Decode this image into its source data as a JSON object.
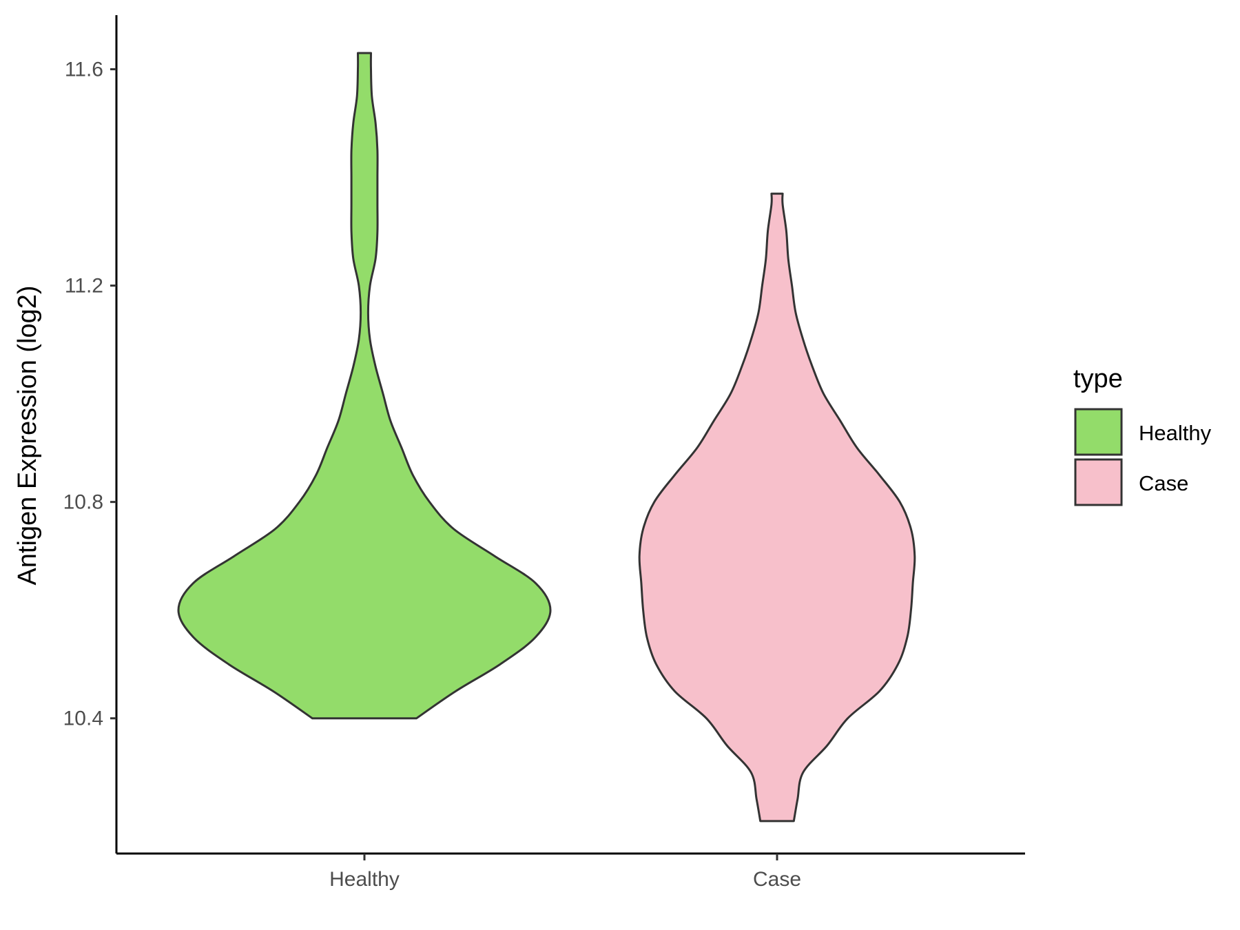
{
  "chart_data": {
    "type": "violin",
    "title": "",
    "xlabel": "",
    "ylabel": "Antigen Expression (log2)",
    "categories": [
      "Healthy",
      "Case"
    ],
    "ylim": [
      10.15,
      11.7
    ],
    "yticks": [
      10.4,
      10.8,
      11.2,
      11.6
    ],
    "ytick_labels": [
      "10.4",
      "10.8",
      "11.2",
      "11.6"
    ],
    "grid": false,
    "legend": {
      "title": "type",
      "position": "right",
      "items": [
        {
          "label": "Healthy",
          "color": "#93dc6a"
        },
        {
          "label": "Case",
          "color": "#f7c0cb"
        }
      ]
    },
    "series": [
      {
        "name": "Healthy",
        "color": "#93dc6a",
        "density": [
          [
            10.4,
            0.28
          ],
          [
            10.45,
            0.49
          ],
          [
            10.5,
            0.73
          ],
          [
            10.55,
            0.92
          ],
          [
            10.6,
            1.0
          ],
          [
            10.65,
            0.92
          ],
          [
            10.7,
            0.7
          ],
          [
            10.75,
            0.48
          ],
          [
            10.8,
            0.35
          ],
          [
            10.85,
            0.26
          ],
          [
            10.9,
            0.2
          ],
          [
            10.95,
            0.14
          ],
          [
            11.0,
            0.1
          ],
          [
            11.05,
            0.06
          ],
          [
            11.1,
            0.03
          ],
          [
            11.15,
            0.02
          ],
          [
            11.2,
            0.03
          ],
          [
            11.25,
            0.06
          ],
          [
            11.3,
            0.07
          ],
          [
            11.35,
            0.07
          ],
          [
            11.4,
            0.07
          ],
          [
            11.45,
            0.07
          ],
          [
            11.5,
            0.06
          ],
          [
            11.55,
            0.04
          ],
          [
            11.6,
            0.035
          ],
          [
            11.63,
            0.035
          ]
        ]
      },
      {
        "name": "Case",
        "color": "#f7c0cb",
        "density": [
          [
            10.21,
            0.09
          ],
          [
            10.25,
            0.11
          ],
          [
            10.3,
            0.14
          ],
          [
            10.35,
            0.27
          ],
          [
            10.4,
            0.38
          ],
          [
            10.45,
            0.55
          ],
          [
            10.5,
            0.65
          ],
          [
            10.55,
            0.7
          ],
          [
            10.6,
            0.72
          ],
          [
            10.65,
            0.73
          ],
          [
            10.7,
            0.74
          ],
          [
            10.75,
            0.72
          ],
          [
            10.8,
            0.66
          ],
          [
            10.85,
            0.55
          ],
          [
            10.9,
            0.43
          ],
          [
            10.95,
            0.34
          ],
          [
            11.0,
            0.25
          ],
          [
            11.05,
            0.19
          ],
          [
            11.1,
            0.14
          ],
          [
            11.15,
            0.1
          ],
          [
            11.2,
            0.08
          ],
          [
            11.25,
            0.06
          ],
          [
            11.3,
            0.05
          ],
          [
            11.35,
            0.03
          ],
          [
            11.37,
            0.03
          ]
        ]
      }
    ]
  }
}
